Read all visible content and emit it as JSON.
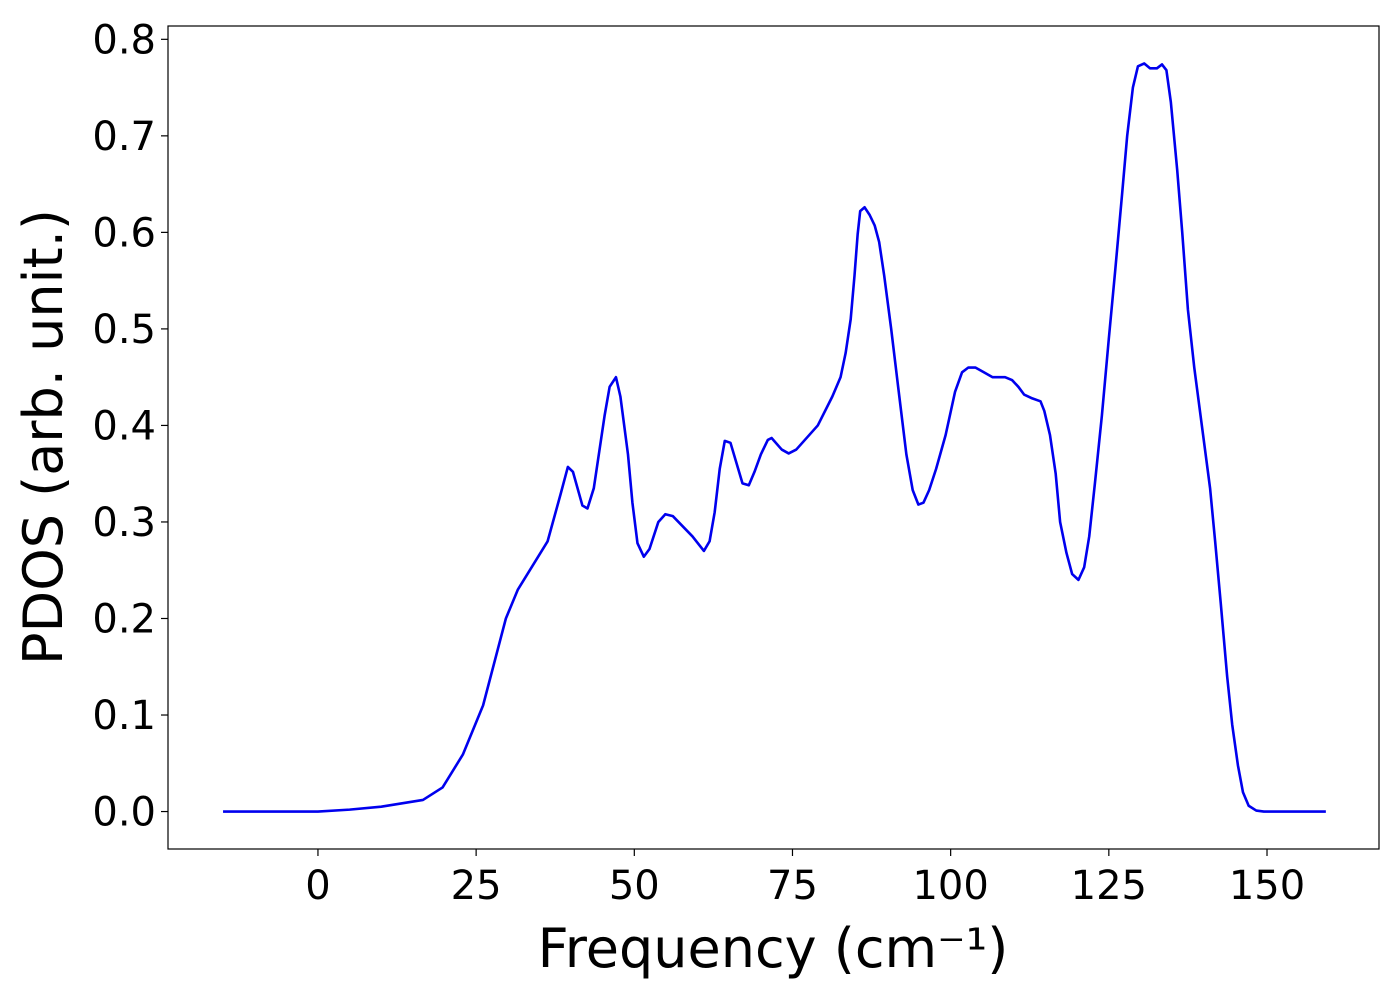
{
  "chart_data": {
    "type": "line",
    "xlabel": "Frequency (cm⁻¹)",
    "ylabel": "PDOS (arb. unit.)",
    "xlim": [
      -23.7,
      167.7
    ],
    "ylim": [
      -0.0388,
      0.8138
    ],
    "xticks": [
      0,
      25,
      50,
      75,
      100,
      125,
      150
    ],
    "yticks": [
      {
        "value": 0,
        "label": "0.0"
      },
      0.1,
      0.2,
      0.3,
      0.4,
      0.5,
      0.6,
      0.7,
      0.8
    ],
    "grid": false,
    "x": [
      -15,
      0,
      5,
      10,
      16.6,
      19.7,
      22.9,
      26.1,
      29.7,
      31.6,
      36.3,
      38.4,
      39.5,
      40.3,
      41.8,
      42.6,
      43.6,
      45.3,
      46.1,
      47.1,
      47.8,
      49,
      49.7,
      50.5,
      51.5,
      52.4,
      53.8,
      54.9,
      56.1,
      59.2,
      61,
      61.9,
      62.7,
      63.5,
      64.3,
      65.2,
      67.1,
      68.1,
      69,
      70,
      71.1,
      71.7,
      73.3,
      74.4,
      75.6,
      79,
      81.3,
      82.6,
      83.4,
      84.2,
      84.8,
      85.3,
      85.7,
      86.4,
      87.2,
      88,
      88.7,
      89.5,
      90.6,
      91.7,
      93,
      94,
      94.9,
      95.7,
      96.6,
      97.7,
      99.2,
      100.7,
      101.8,
      102.8,
      103.9,
      105,
      106.6,
      108.6,
      109.7,
      110.7,
      111.6,
      112.9,
      114.2,
      114.8,
      115.7,
      116.6,
      117.3,
      118.3,
      119.2,
      120.2,
      121.1,
      121.9,
      122.8,
      123.9,
      125,
      126,
      127.1,
      127.9,
      128.8,
      129.6,
      130.6,
      131.5,
      132.6,
      133.4,
      134.1,
      134.8,
      135.8,
      136.6,
      137.5,
      138.5,
      139.7,
      141,
      141.8,
      142.7,
      143.7,
      144.5,
      145.4,
      146.2,
      147.1,
      148.3,
      149.5,
      159.3
    ],
    "series": [
      {
        "name": "PDOS",
        "color": "#0000ee",
        "values": [
          0,
          0,
          0.002,
          0.005,
          0.012,
          0.025,
          0.059,
          0.11,
          0.2,
          0.23,
          0.28,
          0.33,
          0.357,
          0.352,
          0.317,
          0.314,
          0.335,
          0.41,
          0.44,
          0.45,
          0.43,
          0.37,
          0.32,
          0.278,
          0.264,
          0.272,
          0.3,
          0.308,
          0.306,
          0.285,
          0.27,
          0.28,
          0.31,
          0.355,
          0.384,
          0.382,
          0.34,
          0.338,
          0.352,
          0.37,
          0.385,
          0.387,
          0.375,
          0.371,
          0.375,
          0.4,
          0.43,
          0.45,
          0.475,
          0.51,
          0.555,
          0.598,
          0.622,
          0.626,
          0.618,
          0.607,
          0.59,
          0.555,
          0.5,
          0.44,
          0.37,
          0.333,
          0.318,
          0.32,
          0.333,
          0.355,
          0.39,
          0.435,
          0.455,
          0.46,
          0.46,
          0.456,
          0.45,
          0.45,
          0.447,
          0.44,
          0.432,
          0.428,
          0.425,
          0.415,
          0.39,
          0.35,
          0.3,
          0.268,
          0.246,
          0.24,
          0.253,
          0.285,
          0.34,
          0.41,
          0.49,
          0.56,
          0.64,
          0.7,
          0.75,
          0.772,
          0.775,
          0.77,
          0.77,
          0.774,
          0.768,
          0.735,
          0.665,
          0.6,
          0.52,
          0.46,
          0.4,
          0.335,
          0.28,
          0.215,
          0.14,
          0.09,
          0.048,
          0.02,
          0.006,
          0.001,
          0,
          0
        ]
      }
    ]
  }
}
